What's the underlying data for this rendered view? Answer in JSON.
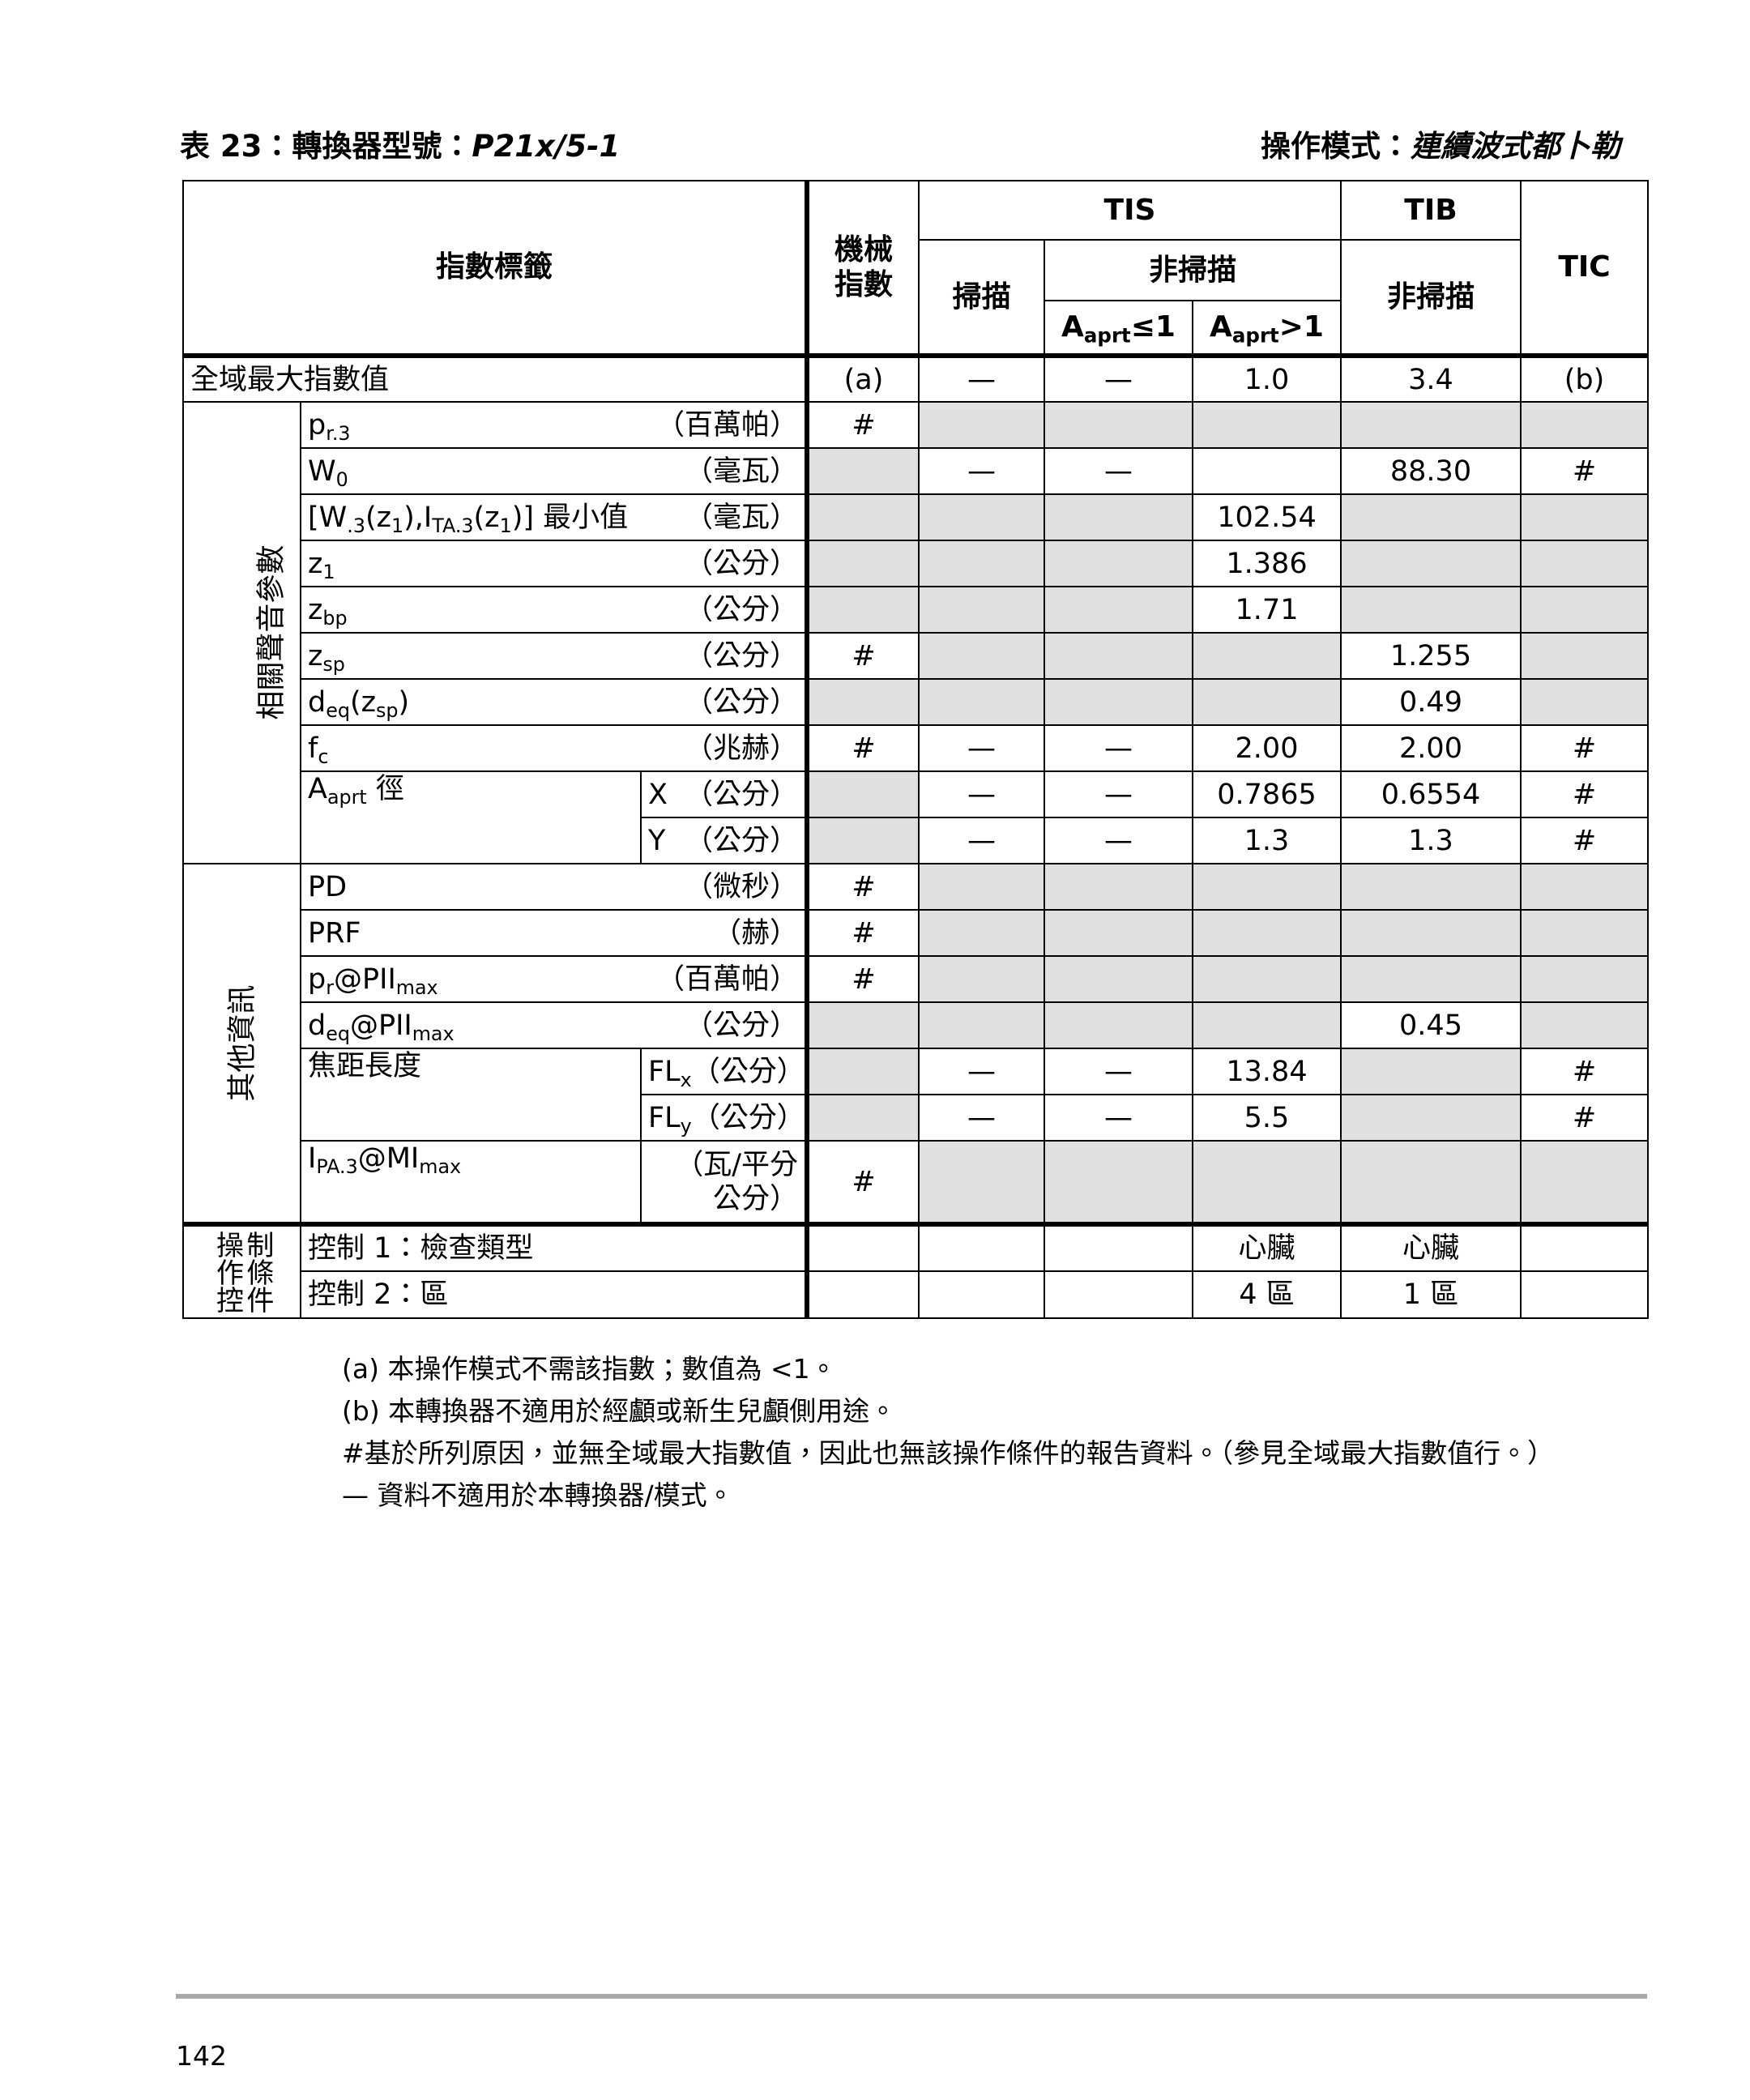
{
  "header": {
    "left_prefix": "表 23：轉換器型號：",
    "left_model": "P21x/5-1",
    "right_prefix": "操作模式：",
    "right_mode": "連續波式都卜勒"
  },
  "table": {
    "column_headers": {
      "index_label": "指數標籤",
      "mi": [
        "機械",
        "指數"
      ],
      "tis": "TIS",
      "tib": "TIB",
      "tic": "TIC",
      "scan": "掃描",
      "nonscan": "非掃描",
      "tib_nonscan": "非掃描",
      "aprt_le": [
        "A",
        {
          "sub": "aprt"
        },
        "≤1"
      ],
      "aprt_gt": [
        "A",
        {
          "sub": "aprt"
        },
        ">1"
      ]
    },
    "global_row": {
      "label": "全域最大指數值",
      "values": [
        "(a)",
        "—",
        "—",
        "1.0",
        "3.4",
        "(b)"
      ],
      "shaded": [
        false,
        false,
        false,
        false,
        false,
        false
      ]
    },
    "groups": [
      {
        "label": "相關聲音參數",
        "rows": [
          {
            "param": [
              "p",
              {
                "sub": "r.3"
              }
            ],
            "unit": "（百萬帕）",
            "values": [
              "#",
              null,
              null,
              null,
              null,
              null
            ],
            "shaded": [
              false,
              true,
              true,
              true,
              true,
              true
            ]
          },
          {
            "param": [
              "W",
              {
                "sub": "0"
              }
            ],
            "unit": "（毫瓦）",
            "values": [
              null,
              "—",
              "—",
              null,
              "88.30",
              "#"
            ],
            "shaded": [
              true,
              false,
              false,
              false,
              false,
              false
            ]
          },
          {
            "param": [
              "[W",
              {
                "sub": ".3"
              },
              "(z",
              {
                "sub": "1"
              },
              "),I",
              {
                "sub": "TA.3"
              },
              "(z",
              {
                "sub": "1"
              },
              ")] 最小值"
            ],
            "unit": "（毫瓦）",
            "values": [
              null,
              null,
              null,
              "102.54",
              null,
              null
            ],
            "shaded": [
              true,
              true,
              true,
              false,
              true,
              true
            ]
          },
          {
            "param": [
              "z",
              {
                "sub": "1"
              }
            ],
            "unit": "（公分）",
            "values": [
              null,
              null,
              null,
              "1.386",
              null,
              null
            ],
            "shaded": [
              true,
              true,
              true,
              false,
              true,
              true
            ]
          },
          {
            "param": [
              "z",
              {
                "sub": "bp"
              }
            ],
            "unit": "（公分）",
            "values": [
              null,
              null,
              null,
              "1.71",
              null,
              null
            ],
            "shaded": [
              true,
              true,
              true,
              false,
              true,
              true
            ]
          },
          {
            "param": [
              "z",
              {
                "sub": "sp"
              }
            ],
            "unit": "（公分）",
            "values": [
              "#",
              null,
              null,
              null,
              "1.255",
              null
            ],
            "shaded": [
              false,
              true,
              true,
              true,
              false,
              true
            ]
          },
          {
            "param": [
              "d",
              {
                "sub": "eq"
              },
              "(z",
              {
                "sub": "sp"
              },
              ")"
            ],
            "unit": "（公分）",
            "values": [
              null,
              null,
              null,
              null,
              "0.49",
              null
            ],
            "shaded": [
              true,
              true,
              true,
              true,
              false,
              true
            ]
          },
          {
            "param": [
              "f",
              {
                "sub": "c"
              }
            ],
            "unit": "（兆赫）",
            "values": [
              "#",
              "—",
              "—",
              "2.00",
              "2.00",
              "#"
            ],
            "shaded": [
              false,
              false,
              false,
              false,
              false,
              false
            ]
          },
          {
            "param": [
              "A",
              {
                "sub": "aprt"
              },
              " 徑"
            ],
            "subrows": [
              {
                "axis": [
                  "X"
                ],
                "unit": "（公分）",
                "values": [
                  null,
                  "—",
                  "—",
                  "0.7865",
                  "0.6554",
                  "#"
                ],
                "shaded": [
                  true,
                  false,
                  false,
                  false,
                  false,
                  false
                ]
              },
              {
                "axis": [
                  "Y"
                ],
                "unit": "（公分）",
                "values": [
                  null,
                  "—",
                  "—",
                  "1.3",
                  "1.3",
                  "#"
                ],
                "shaded": [
                  true,
                  false,
                  false,
                  false,
                  false,
                  false
                ]
              }
            ]
          }
        ]
      },
      {
        "label": "其他資訊",
        "rows": [
          {
            "param": [
              "PD"
            ],
            "unit": "（微秒）",
            "values": [
              "#",
              null,
              null,
              null,
              null,
              null
            ],
            "shaded": [
              false,
              true,
              true,
              true,
              true,
              true
            ]
          },
          {
            "param": [
              "PRF"
            ],
            "unit": "（赫）",
            "values": [
              "#",
              null,
              null,
              null,
              null,
              null
            ],
            "shaded": [
              false,
              true,
              true,
              true,
              true,
              true
            ]
          },
          {
            "param": [
              "p",
              {
                "sub": "r"
              },
              "@PII",
              {
                "sub": "max"
              }
            ],
            "unit": "（百萬帕）",
            "values": [
              "#",
              null,
              null,
              null,
              null,
              null
            ],
            "shaded": [
              false,
              true,
              true,
              true,
              true,
              true
            ]
          },
          {
            "param": [
              "d",
              {
                "sub": "eq"
              },
              "@PII",
              {
                "sub": "max"
              }
            ],
            "unit": "（公分）",
            "values": [
              null,
              null,
              null,
              null,
              "0.45",
              null
            ],
            "shaded": [
              true,
              true,
              true,
              true,
              false,
              true
            ]
          },
          {
            "param": [
              "焦距長度"
            ],
            "subrows": [
              {
                "axis": [
                  "FL",
                  {
                    "sub": "x"
                  }
                ],
                "unit": "（公分）",
                "values": [
                  null,
                  "—",
                  "—",
                  "13.84",
                  null,
                  "#"
                ],
                "shaded": [
                  true,
                  false,
                  false,
                  false,
                  true,
                  false
                ]
              },
              {
                "axis": [
                  "FL",
                  {
                    "sub": "y"
                  }
                ],
                "unit": "（公分）",
                "values": [
                  null,
                  "—",
                  "—",
                  "5.5",
                  null,
                  "#"
                ],
                "shaded": [
                  true,
                  false,
                  false,
                  false,
                  true,
                  false
                ]
              }
            ]
          },
          {
            "param": [
              "I",
              {
                "sub": "PA.3"
              },
              "@MI",
              {
                "sub": "max"
              }
            ],
            "subrows": [
              {
                "axis": [],
                "unit": "（瓦/平分公分）",
                "values": [
                  "#",
                  null,
                  null,
                  null,
                  null,
                  null
                ],
                "shaded": [
                  false,
                  true,
                  true,
                  true,
                  true,
                  true
                ]
              }
            ]
          }
        ]
      },
      {
        "label": "操作控制條件",
        "rows": [
          {
            "param": [
              "控制 1：檢查類型"
            ],
            "values": [
              null,
              null,
              null,
              "心臟",
              "心臟",
              null
            ],
            "shaded": [
              false,
              false,
              false,
              false,
              false,
              false
            ]
          },
          {
            "param": [
              "控制 2：區"
            ],
            "values": [
              null,
              null,
              null,
              "4 區",
              "1 區",
              null
            ],
            "shaded": [
              false,
              false,
              false,
              false,
              false,
              false
            ]
          }
        ]
      }
    ]
  },
  "footnotes": [
    "(a) 本操作模式不需該指數；數值為 <1。",
    "(b) 本轉換器不適用於經顱或新生兒顱側用途。",
    "#基於所列原因，並無全域最大指數值，因此也無該操作條件的報告資料。（參見全域最大指數值行。）",
    "— 資料不適用於本轉換器/模式。"
  ],
  "page_number": "142"
}
